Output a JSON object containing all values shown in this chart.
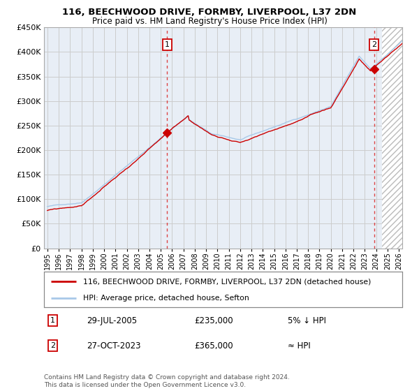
{
  "title": "116, BEECHWOOD DRIVE, FORMBY, LIVERPOOL, L37 2DN",
  "subtitle": "Price paid vs. HM Land Registry's House Price Index (HPI)",
  "legend_line1": "116, BEECHWOOD DRIVE, FORMBY, LIVERPOOL, L37 2DN (detached house)",
  "legend_line2": "HPI: Average price, detached house, Sefton",
  "annotation1_label": "1",
  "annotation1_date": "29-JUL-2005",
  "annotation1_price": "£235,000",
  "annotation1_note": "5% ↓ HPI",
  "annotation2_label": "2",
  "annotation2_date": "27-OCT-2023",
  "annotation2_price": "£365,000",
  "annotation2_note": "≈ HPI",
  "footer": "Contains HM Land Registry data © Crown copyright and database right 2024.\nThis data is licensed under the Open Government Licence v3.0.",
  "hpi_color": "#A8C8E8",
  "price_color": "#CC0000",
  "bg_color": "#E8EEF6",
  "grid_color": "#CCCCCC",
  "hatch_color": "#BBBBBB",
  "ylim": [
    0,
    450000
  ],
  "yticks": [
    0,
    50000,
    100000,
    150000,
    200000,
    250000,
    300000,
    350000,
    400000,
    450000
  ],
  "xlim_left": 1994.7,
  "xlim_right": 2026.3,
  "hatch_start": 2024.5,
  "sale1_x": 2005.57,
  "sale1_y": 235000,
  "sale2_x": 2023.82,
  "sale2_y": 365000
}
